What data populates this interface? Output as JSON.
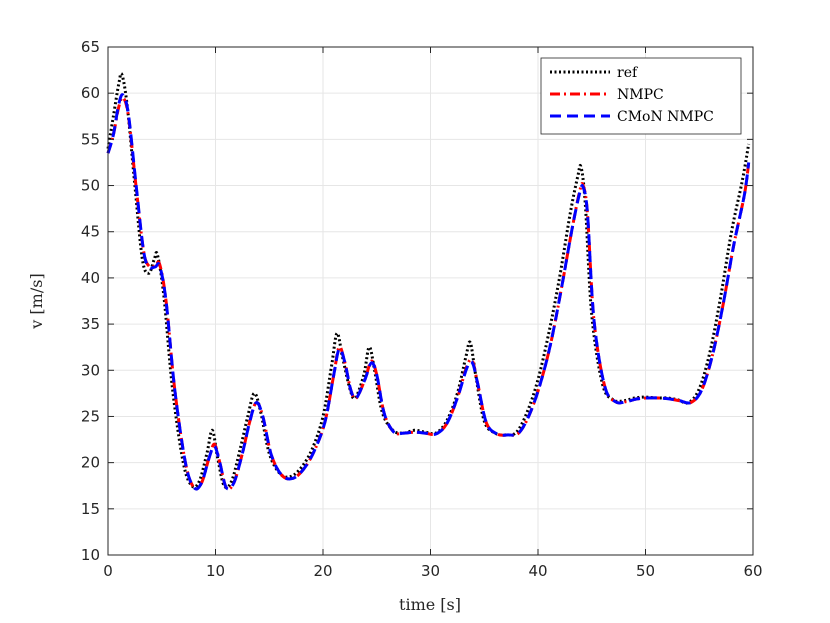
{
  "chart_data": {
    "type": "line",
    "title": "",
    "xlabel": "time [s]",
    "ylabel": "v [m/s]",
    "xlim": [
      0,
      60
    ],
    "ylim": [
      10,
      65
    ],
    "xticks": [
      0,
      10,
      20,
      30,
      40,
      50,
      60
    ],
    "yticks": [
      10,
      15,
      20,
      25,
      30,
      35,
      40,
      45,
      50,
      55,
      60,
      65
    ],
    "xtick_labels": [
      "0",
      "10",
      "20",
      "30",
      "40",
      "50",
      "60"
    ],
    "ytick_labels": [
      "10",
      "15",
      "20",
      "25",
      "30",
      "35",
      "40",
      "45",
      "50",
      "55",
      "60",
      "65"
    ],
    "grid": true,
    "legend_position": "top-right",
    "series": [
      {
        "name": "ref",
        "color": "#000000",
        "style": "dotted",
        "x": [
          0,
          0.5,
          1.0,
          1.3,
          1.8,
          2.5,
          3.2,
          3.8,
          4.3,
          4.6,
          5.2,
          6.0,
          7.0,
          7.8,
          8.5,
          9.2,
          9.7,
          10.2,
          10.8,
          11.5,
          12.3,
          13.0,
          13.6,
          14.2,
          15.0,
          16.0,
          17.0,
          18.0,
          19.0,
          20.0,
          20.8,
          21.3,
          21.8,
          22.5,
          23.0,
          23.8,
          24.3,
          24.8,
          25.5,
          26.5,
          27.5,
          28.5,
          29.5,
          30.5,
          31.5,
          32.5,
          33.3,
          33.7,
          34.2,
          35.0,
          36.0,
          37.0,
          38.0,
          39.0,
          40.0,
          41.0,
          42.0,
          43.0,
          43.7,
          44.0,
          44.4,
          45.0,
          46.0,
          47.0,
          48.0,
          49.0,
          50.0,
          51.0,
          52.0,
          53.0,
          54.0,
          55.0,
          56.0,
          57.0,
          58.0,
          59.0,
          59.6
        ],
        "y": [
          54,
          57.5,
          61,
          62,
          58.5,
          50,
          42,
          40.5,
          42,
          42.5,
          38,
          28,
          20,
          17.5,
          18,
          21,
          23.5,
          20.5,
          17.5,
          18,
          21.5,
          25,
          27.5,
          25.5,
          21,
          18.8,
          18.5,
          19.5,
          21.5,
          25,
          30.5,
          34,
          31.5,
          28,
          27,
          29.5,
          32.5,
          30,
          25.5,
          23.5,
          23.2,
          23.5,
          23.3,
          23.2,
          24.5,
          27.5,
          31.5,
          33,
          29.5,
          24.5,
          23.2,
          23,
          23.3,
          25.5,
          29,
          34,
          40,
          47,
          51,
          52,
          48,
          36,
          28.5,
          26.8,
          26.7,
          27,
          27.1,
          27,
          27,
          26.8,
          26.5,
          28,
          32,
          38,
          45,
          50.5,
          54.5
        ]
      },
      {
        "name": "NMPC",
        "color": "#ff0000",
        "style": "dashdot",
        "x": [
          0,
          0.5,
          1.0,
          1.4,
          1.9,
          2.6,
          3.3,
          3.8,
          4.4,
          4.8,
          5.4,
          6.2,
          7.2,
          8.0,
          8.7,
          9.4,
          9.9,
          10.4,
          11.0,
          11.7,
          12.5,
          13.2,
          13.8,
          14.4,
          15.2,
          16.2,
          17.2,
          18.2,
          19.2,
          20.2,
          21.0,
          21.5,
          22.0,
          22.6,
          23.1,
          23.9,
          24.5,
          25.0,
          25.7,
          26.6,
          27.5,
          28.5,
          29.5,
          30.5,
          31.5,
          32.5,
          33.4,
          33.9,
          34.4,
          35.2,
          36.2,
          37.2,
          38.2,
          39.2,
          40.2,
          41.2,
          42.2,
          43.2,
          43.9,
          44.2,
          44.6,
          45.2,
          46.2,
          47.2,
          48.2,
          49.2,
          50.2,
          51.2,
          52.2,
          53.2,
          54.2,
          55.2,
          56.2,
          57.2,
          58.2,
          59.2,
          59.6
        ],
        "y": [
          53.5,
          55.5,
          58.5,
          59.5,
          57.5,
          50,
          43,
          41.3,
          41.3,
          41.5,
          37.5,
          28,
          20,
          17.3,
          17.8,
          20.5,
          22,
          20,
          17.3,
          17.8,
          21,
          24.5,
          26.5,
          25,
          20.8,
          18.6,
          18.3,
          19.3,
          21.3,
          24.5,
          29.5,
          32.5,
          31,
          27.8,
          27,
          29,
          31,
          29.5,
          25.3,
          23.3,
          23.2,
          23.3,
          23.2,
          23.1,
          24.2,
          27,
          30.5,
          31,
          28.5,
          24.3,
          23.1,
          23,
          23.2,
          25.2,
          28.5,
          33,
          39,
          45.5,
          49.5,
          50,
          47,
          35.5,
          28.3,
          26.6,
          26.6,
          26.9,
          27,
          27,
          26.9,
          26.7,
          26.5,
          27.8,
          31.5,
          37,
          43.5,
          49,
          52.5
        ]
      },
      {
        "name": "CMoN NMPC",
        "color": "#0000ff",
        "style": "dashed",
        "x": [
          0,
          0.5,
          1.0,
          1.4,
          1.9,
          2.6,
          3.3,
          3.8,
          4.4,
          4.8,
          5.4,
          6.2,
          7.2,
          8.0,
          8.7,
          9.4,
          9.9,
          10.4,
          11.0,
          11.7,
          12.5,
          13.2,
          13.8,
          14.4,
          15.2,
          16.2,
          17.2,
          18.2,
          19.2,
          20.2,
          21.0,
          21.5,
          22.0,
          22.6,
          23.1,
          23.9,
          24.5,
          25.0,
          25.7,
          26.6,
          27.5,
          28.5,
          29.5,
          30.5,
          31.5,
          32.5,
          33.4,
          33.9,
          34.4,
          35.2,
          36.2,
          37.2,
          38.2,
          39.2,
          40.2,
          41.2,
          42.2,
          43.2,
          43.9,
          44.2,
          44.6,
          45.2,
          46.2,
          47.2,
          48.2,
          49.2,
          50.2,
          51.2,
          52.2,
          53.2,
          54.2,
          55.2,
          56.2,
          57.2,
          58.2,
          59.2,
          59.6
        ],
        "y": [
          53.5,
          55.5,
          58.8,
          59.8,
          57.7,
          50.2,
          43,
          41.2,
          41.2,
          41.3,
          37.5,
          28,
          20,
          17.3,
          17.8,
          20.5,
          21.8,
          20,
          17.3,
          17.8,
          21,
          24.5,
          26.5,
          25,
          20.8,
          18.6,
          18.3,
          19.3,
          21.3,
          24.5,
          29.5,
          32.3,
          31,
          27.8,
          27,
          29,
          30.8,
          29.5,
          25.3,
          23.3,
          23.2,
          23.3,
          23.2,
          23.1,
          24.2,
          27,
          30.3,
          30.8,
          28.5,
          24.3,
          23.1,
          23,
          23.2,
          25.2,
          28.5,
          33,
          39,
          45.5,
          49.3,
          49.8,
          47,
          35.5,
          28.3,
          26.6,
          26.6,
          26.9,
          27,
          27,
          26.9,
          26.7,
          26.5,
          27.8,
          31.5,
          37,
          43.5,
          49,
          52.5
        ]
      }
    ]
  }
}
